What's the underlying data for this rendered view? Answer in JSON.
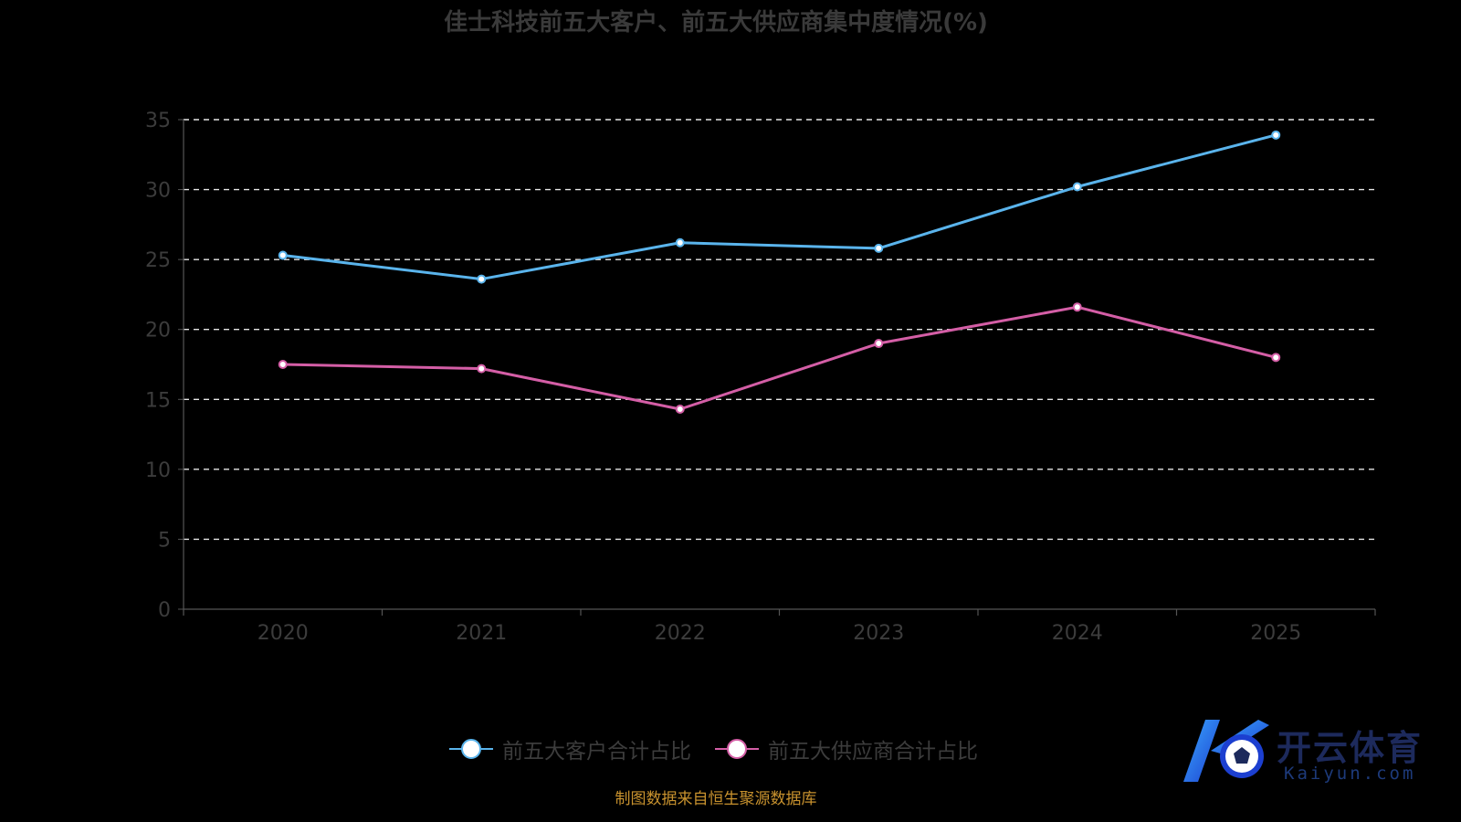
{
  "chart_data": {
    "type": "line",
    "title": "佳士科技前五大客户、前五大供应商集中度情况(%)",
    "categories": [
      "2020",
      "2021",
      "2022",
      "2023",
      "2024",
      "2025"
    ],
    "series": [
      {
        "name": "前五大客户合计占比",
        "values": [
          25.3,
          23.6,
          26.2,
          25.8,
          30.2,
          33.9
        ],
        "color": "#5ab4ec"
      },
      {
        "name": "前五大供应商合计占比",
        "values": [
          17.5,
          17.2,
          14.3,
          19.0,
          21.6,
          18.0
        ],
        "color": "#d45ea6"
      }
    ],
    "yticks": [
      "0",
      "5",
      "10",
      "15",
      "20",
      "25",
      "30",
      "35"
    ],
    "ylim": [
      0,
      35
    ],
    "grid": true,
    "legend_position": "bottom",
    "source_note": "制图数据来自恒生聚源数据库"
  },
  "watermark": {
    "brand": "开云体育",
    "domain": "Kaiyun.com"
  }
}
